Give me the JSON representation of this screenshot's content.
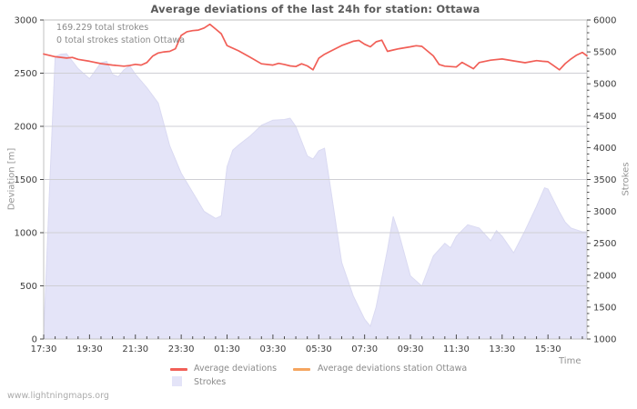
{
  "title": "Average deviations of the last 24h for station: Ottawa",
  "annotations": {
    "total_strokes": "169.229 total strokes",
    "station_strokes": "0 total strokes station Ottawa"
  },
  "watermark": "www.lightningmaps.org",
  "colors": {
    "deviation_line": "#f15f57",
    "station_line": "#f5a55f",
    "strokes_area": "#e4e4f8",
    "strokes_area_edge": "#dadaf2",
    "grid": "#cfcfd4",
    "frame": "#c2c2c2",
    "tick": "#4a4a4a",
    "tick_label": "#3c3c3c"
  },
  "legend": {
    "items": [
      {
        "type": "line",
        "color": "#f15f57",
        "label": "Average deviations"
      },
      {
        "type": "line",
        "color": "#f5a55f",
        "label": "Average deviations station Ottawa"
      },
      {
        "type": "area",
        "color": "#e4e4f8",
        "label": "Strokes"
      }
    ]
  },
  "chart_data": {
    "type": "line+area",
    "title": "Average deviations of the last 24h for station: Ottawa",
    "grid": "horizontal",
    "x_axis": {
      "label": "Time",
      "tick_hours": [
        0,
        2,
        4,
        6,
        8,
        10,
        12,
        14,
        16,
        18,
        20,
        22
      ],
      "tick_labels": [
        "17:30",
        "19:30",
        "21:30",
        "23:30",
        "01:30",
        "03:30",
        "05:30",
        "07:30",
        "09:30",
        "11:30",
        "13:30",
        "15:30"
      ],
      "minor_step_hours": 0.5,
      "end_hours": 23.7
    },
    "y_left": {
      "label": "Deviation [m]",
      "min": 0,
      "max": 3000,
      "step": 500,
      "tick_labels": [
        "0",
        "500",
        "1000",
        "1500",
        "2000",
        "2500",
        "3000"
      ]
    },
    "y_right": {
      "label": "Strokes",
      "min": 1000,
      "max": 6000,
      "step": 500,
      "minor_step": 100,
      "tick_labels": [
        "1000",
        "1500",
        "2000",
        "2500",
        "3000",
        "3500",
        "4000",
        "4500",
        "5000",
        "5500",
        "6000"
      ]
    },
    "series": [
      {
        "name": "Strokes",
        "axis": "right",
        "kind": "area",
        "points": [
          [
            0,
            1050
          ],
          [
            0.25,
            3300
          ],
          [
            0.5,
            5420
          ],
          [
            0.75,
            5465
          ],
          [
            1,
            5470
          ],
          [
            1.5,
            5240
          ],
          [
            2,
            5080
          ],
          [
            2.5,
            5330
          ],
          [
            2.75,
            5350
          ],
          [
            3,
            5150
          ],
          [
            3.25,
            5110
          ],
          [
            3.5,
            5220
          ],
          [
            3.75,
            5280
          ],
          [
            4,
            5150
          ],
          [
            4.5,
            4940
          ],
          [
            5,
            4700
          ],
          [
            5.5,
            4030
          ],
          [
            6,
            3600
          ],
          [
            6.5,
            3300
          ],
          [
            7,
            3000
          ],
          [
            7.5,
            2890
          ],
          [
            7.75,
            2930
          ],
          [
            8,
            3700
          ],
          [
            8.25,
            3960
          ],
          [
            8.5,
            4040
          ],
          [
            9,
            4180
          ],
          [
            9.5,
            4350
          ],
          [
            10,
            4430
          ],
          [
            10.5,
            4440
          ],
          [
            10.75,
            4460
          ],
          [
            11,
            4330
          ],
          [
            11.5,
            3870
          ],
          [
            11.75,
            3820
          ],
          [
            12,
            3950
          ],
          [
            12.25,
            3990
          ],
          [
            12.5,
            3400
          ],
          [
            13,
            2200
          ],
          [
            13.5,
            1680
          ],
          [
            14,
            1310
          ],
          [
            14.25,
            1200
          ],
          [
            14.5,
            1500
          ],
          [
            15,
            2400
          ],
          [
            15.25,
            2920
          ],
          [
            15.5,
            2650
          ],
          [
            16,
            1990
          ],
          [
            16.5,
            1830
          ],
          [
            17,
            2300
          ],
          [
            17.5,
            2500
          ],
          [
            17.75,
            2430
          ],
          [
            18,
            2610
          ],
          [
            18.5,
            2790
          ],
          [
            19,
            2740
          ],
          [
            19.5,
            2540
          ],
          [
            19.75,
            2700
          ],
          [
            20,
            2610
          ],
          [
            20.5,
            2350
          ],
          [
            21,
            2700
          ],
          [
            21.5,
            3080
          ],
          [
            21.85,
            3370
          ],
          [
            22,
            3350
          ],
          [
            22.5,
            2990
          ],
          [
            22.75,
            2830
          ],
          [
            23,
            2740
          ],
          [
            23.5,
            2680
          ],
          [
            23.7,
            2680
          ]
        ]
      },
      {
        "name": "Average deviations",
        "axis": "left",
        "kind": "line",
        "points": [
          [
            0,
            2680
          ],
          [
            0.5,
            2655
          ],
          [
            1,
            2642
          ],
          [
            1.25,
            2648
          ],
          [
            1.5,
            2630
          ],
          [
            2,
            2612
          ],
          [
            2.5,
            2590
          ],
          [
            3,
            2576
          ],
          [
            3.5,
            2566
          ],
          [
            3.75,
            2572
          ],
          [
            4,
            2583
          ],
          [
            4.25,
            2576
          ],
          [
            4.5,
            2600
          ],
          [
            4.75,
            2660
          ],
          [
            5,
            2690
          ],
          [
            5.25,
            2700
          ],
          [
            5.5,
            2705
          ],
          [
            5.75,
            2730
          ],
          [
            6,
            2855
          ],
          [
            6.25,
            2890
          ],
          [
            6.5,
            2900
          ],
          [
            6.75,
            2905
          ],
          [
            7,
            2925
          ],
          [
            7.25,
            2960
          ],
          [
            7.5,
            2915
          ],
          [
            7.75,
            2870
          ],
          [
            8,
            2760
          ],
          [
            8.5,
            2710
          ],
          [
            9,
            2650
          ],
          [
            9.5,
            2588
          ],
          [
            10,
            2576
          ],
          [
            10.25,
            2592
          ],
          [
            10.5,
            2582
          ],
          [
            10.75,
            2568
          ],
          [
            11,
            2562
          ],
          [
            11.25,
            2588
          ],
          [
            11.5,
            2568
          ],
          [
            11.75,
            2532
          ],
          [
            12,
            2640
          ],
          [
            12.25,
            2678
          ],
          [
            12.5,
            2705
          ],
          [
            13,
            2760
          ],
          [
            13.5,
            2800
          ],
          [
            13.75,
            2808
          ],
          [
            14,
            2772
          ],
          [
            14.25,
            2748
          ],
          [
            14.5,
            2795
          ],
          [
            14.75,
            2810
          ],
          [
            15,
            2705
          ],
          [
            15.25,
            2718
          ],
          [
            15.5,
            2730
          ],
          [
            16,
            2748
          ],
          [
            16.25,
            2758
          ],
          [
            16.5,
            2752
          ],
          [
            17,
            2662
          ],
          [
            17.25,
            2582
          ],
          [
            17.5,
            2566
          ],
          [
            18,
            2558
          ],
          [
            18.25,
            2602
          ],
          [
            18.5,
            2572
          ],
          [
            18.75,
            2542
          ],
          [
            19,
            2600
          ],
          [
            19.5,
            2622
          ],
          [
            20,
            2633
          ],
          [
            20.5,
            2615
          ],
          [
            21,
            2598
          ],
          [
            21.5,
            2618
          ],
          [
            21.75,
            2612
          ],
          [
            22,
            2608
          ],
          [
            22.25,
            2570
          ],
          [
            22.5,
            2532
          ],
          [
            22.75,
            2590
          ],
          [
            23,
            2633
          ],
          [
            23.25,
            2670
          ],
          [
            23.5,
            2695
          ],
          [
            23.7,
            2663
          ]
        ]
      },
      {
        "name": "Average deviations station Ottawa",
        "axis": "left",
        "kind": "line",
        "points": []
      }
    ]
  }
}
